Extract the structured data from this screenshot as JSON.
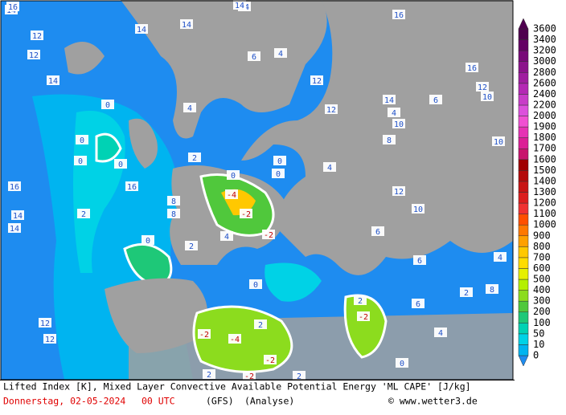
{
  "map": {
    "caption": "Lifted Index [K], Mixed Layer Convective Available Potential Energy 'ML CAPE' [J/kg]",
    "date": "Donnerstag, 02-05-2024",
    "time": "00 UTC",
    "model": "(GFS)",
    "run": "(Analyse)",
    "credit": "© www.wetter3.de",
    "legend": {
      "levels": [
        0,
        10,
        50,
        100,
        200,
        300,
        400,
        500,
        600,
        700,
        800,
        900,
        1000,
        1100,
        1200,
        1300,
        1400,
        1500,
        1600,
        1700,
        1800,
        1900,
        2000,
        2200,
        2400,
        2600,
        2800,
        3000,
        3200,
        3400,
        3600
      ],
      "colors": [
        "#1e8cf0",
        "#00b4f0",
        "#00d2e6",
        "#00d2b4",
        "#1ec878",
        "#50c83c",
        "#8cdc1e",
        "#b4f000",
        "#e6f000",
        "#ffdc00",
        "#ffc800",
        "#ffa000",
        "#ff7800",
        "#ff5000",
        "#f03232",
        "#dc1e1e",
        "#c81414",
        "#b40a0a",
        "#a00000",
        "#c8146e",
        "#dc1e96",
        "#e632b4",
        "#f050d2",
        "#dc50dc",
        "#c83cc8",
        "#b428b4",
        "#a01ea0",
        "#8c148c",
        "#780a78",
        "#640064",
        "#500050"
      ]
    },
    "contour_labels": [
      14,
      16,
      12,
      14,
      12,
      14,
      14,
      16,
      14,
      12,
      12,
      0,
      0,
      0,
      0,
      0,
      16,
      14,
      14,
      2,
      2,
      4,
      2,
      4,
      6,
      8,
      8,
      4,
      4,
      -4,
      -2,
      -2,
      0,
      0,
      0,
      2,
      2,
      -2,
      -4,
      -2,
      -2,
      -2,
      0,
      2,
      4,
      6,
      8,
      10,
      12,
      12,
      10,
      14,
      14,
      16,
      16,
      12,
      10,
      6,
      4,
      2,
      6,
      10,
      12,
      8,
      6,
      4,
      2,
      0
    ]
  }
}
